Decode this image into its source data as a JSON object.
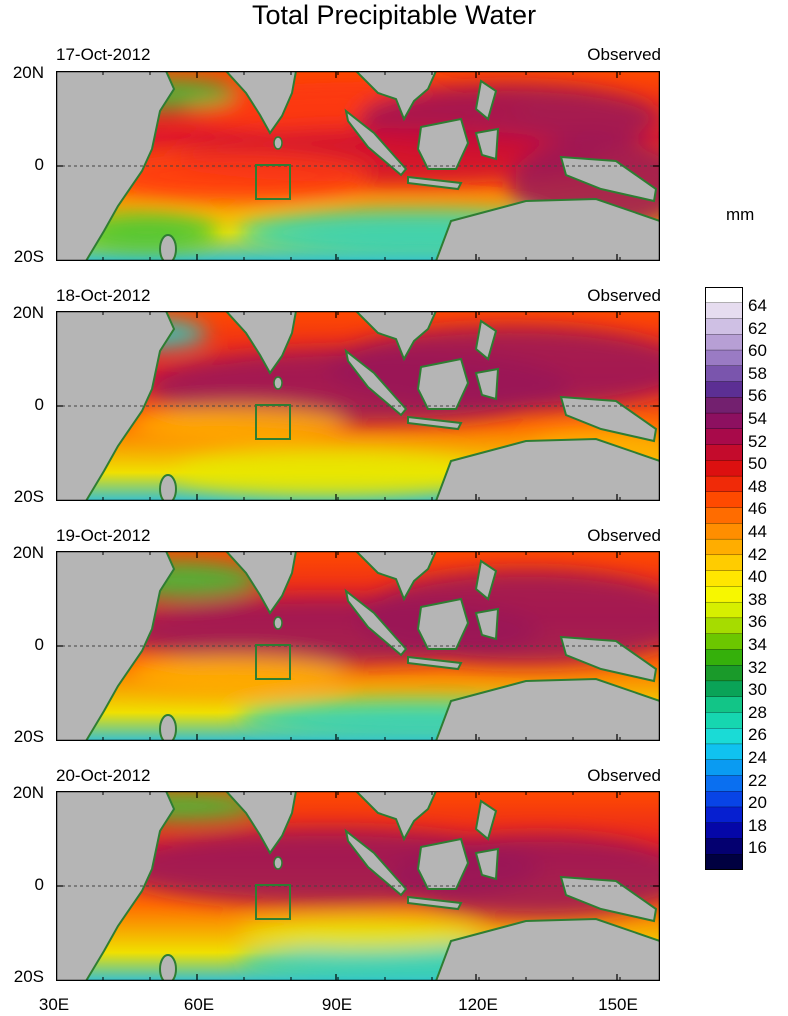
{
  "title": "Total Precipitable Water",
  "units": "mm",
  "panels": [
    {
      "date": "17-Oct-2012",
      "source": "Observed"
    },
    {
      "date": "18-Oct-2012",
      "source": "Observed"
    },
    {
      "date": "19-Oct-2012",
      "source": "Observed"
    },
    {
      "date": "20-Oct-2012",
      "source": "Observed"
    }
  ],
  "lat_labels": {
    "north": "20N",
    "equator": "0",
    "south": "20S"
  },
  "lon_labels": [
    "30E",
    "60E",
    "90E",
    "120E",
    "150E"
  ],
  "colorbar": {
    "labels": [
      "64",
      "62",
      "60",
      "58",
      "56",
      "54",
      "52",
      "50",
      "48",
      "46",
      "44",
      "42",
      "40",
      "38",
      "36",
      "34",
      "32",
      "30",
      "28",
      "26",
      "24",
      "22",
      "20",
      "18",
      "16"
    ],
    "colors": [
      "#ffffff",
      "#e6dcef",
      "#cfc0e4",
      "#b79fd5",
      "#9a7bc4",
      "#7a55ad",
      "#5c2f94",
      "#73206f",
      "#8d1060",
      "#a80a4a",
      "#c40b2c",
      "#dc1010",
      "#f02a08",
      "#ff4a00",
      "#ff6c00",
      "#ff8e00",
      "#ffad00",
      "#ffcc00",
      "#ffe600",
      "#f7f700",
      "#d6ef00",
      "#a6dc00",
      "#6cc700",
      "#35b00b",
      "#1a9a2a",
      "#0aa357",
      "#12c587",
      "#16d6b0",
      "#1adbd6",
      "#10c2f0",
      "#0a9bf2",
      "#0a6ff0",
      "#0844e6",
      "#061fd0",
      "#0507a8",
      "#040070",
      "#000040"
    ]
  },
  "map_colors": {
    "land": "#b5b5b5",
    "coast": "#2e7d32",
    "box": "#2e7d32"
  }
}
